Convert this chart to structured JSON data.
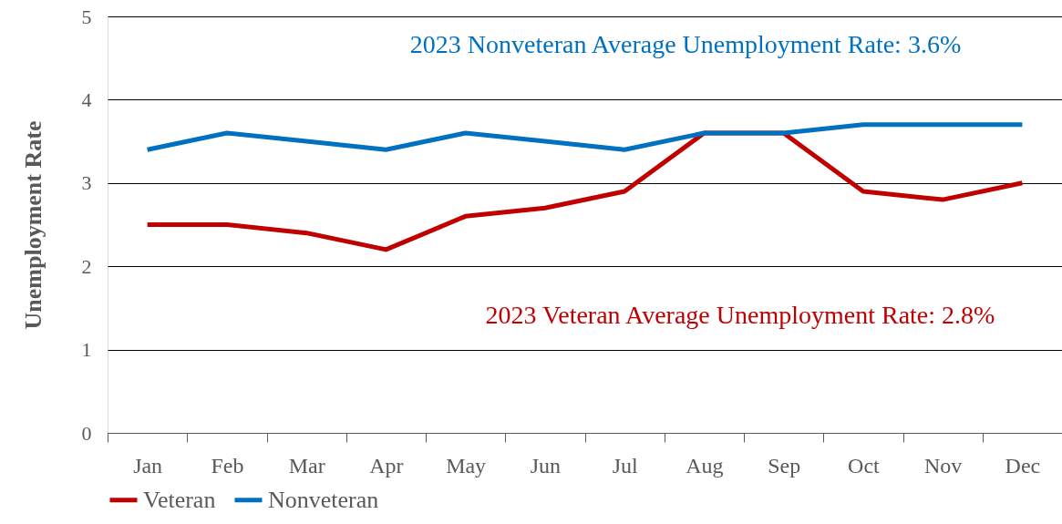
{
  "chart_data": {
    "type": "line",
    "ylabel": "Unemployment Rate",
    "categories": [
      "Jan",
      "Feb",
      "Mar",
      "Apr",
      "May",
      "Jun",
      "Jul",
      "Aug",
      "Sep",
      "Oct",
      "Nov",
      "Dec"
    ],
    "series": [
      {
        "name": "Veteran",
        "color": "#c00000",
        "values": [
          2.5,
          2.5,
          2.4,
          2.2,
          2.6,
          2.7,
          2.9,
          3.6,
          3.6,
          2.9,
          2.8,
          3.0
        ]
      },
      {
        "name": "Nonveteran",
        "color": "#0070c0",
        "values": [
          3.4,
          3.6,
          3.5,
          3.4,
          3.6,
          3.5,
          3.4,
          3.6,
          3.6,
          3.7,
          3.7,
          3.7
        ]
      }
    ],
    "annotations": [
      "2023 Nonveteran Average Unemployment Rate: 3.6%",
      "2023 Veteran Average Unemployment Rate: 2.8%"
    ],
    "ylim": [
      0,
      5
    ],
    "yticks": [
      0,
      1,
      2,
      3,
      4,
      5
    ],
    "grid": "y",
    "legend": "bottom",
    "marker": "none",
    "line_style": "solid"
  }
}
